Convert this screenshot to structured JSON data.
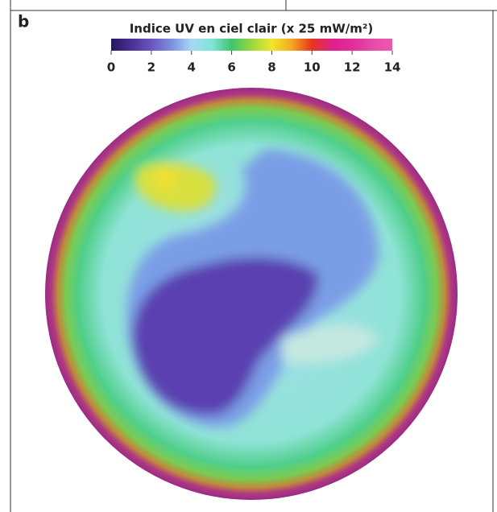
{
  "panel_label": "b",
  "colorbar": {
    "title": "Indice UV en ciel clair (x 25 mW/m²)",
    "lim": [
      0,
      14
    ],
    "ticks": [
      0,
      2,
      4,
      6,
      8,
      10,
      12,
      14
    ],
    "colors": [
      "#261660",
      "#4a2f94",
      "#6a55c0",
      "#7c8fe0",
      "#a8d8f2",
      "#7fe6d8",
      "#3fc46a",
      "#9ad83e",
      "#f2e62e",
      "#f4a71e",
      "#e8341e",
      "#e0208a",
      "#e02c9a",
      "#e84aa8",
      "#ee5ab0"
    ]
  }
}
